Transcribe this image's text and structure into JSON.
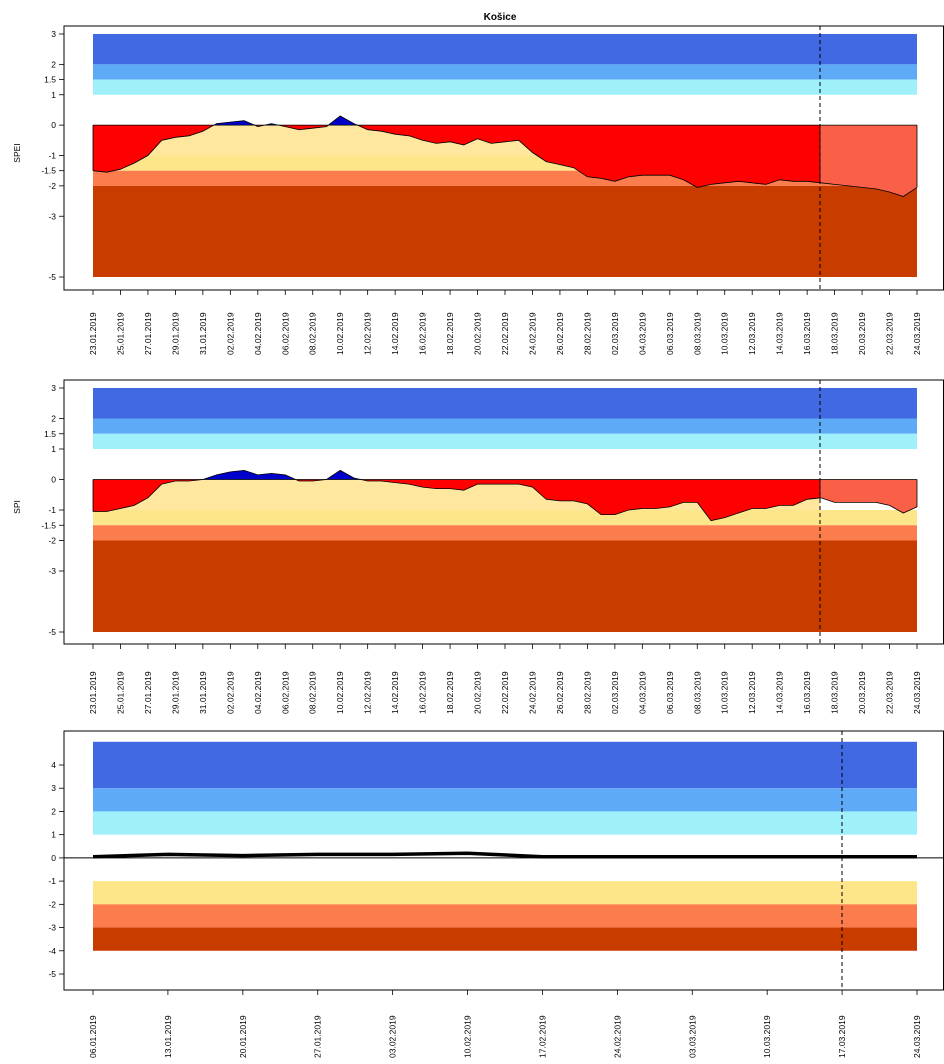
{
  "title": "Košice",
  "colors": {
    "wet_extreme": "#4169e1",
    "wet_severe": "#5eaaf7",
    "wet_moderate": "#a0f0fa",
    "dry_moderate": "#fde68a",
    "dry_severe": "#fb7c4c",
    "dry_extreme": "#c93c00",
    "deficit_observed": "#ff0000",
    "deficit_forecast": "#fa6048",
    "surplus": "#0000cd",
    "deficit_fill": "#ffe7a0"
  },
  "chart_data": [
    {
      "type": "area",
      "ylabel": "SPEI",
      "yticks": [
        3,
        2,
        1.5,
        1,
        0,
        -1,
        -1.5,
        -2,
        -3,
        -5
      ],
      "ylim": [
        -5,
        3
      ],
      "forecast_start": "17.03.2019",
      "x_tick_labels": [
        "23.01.2019",
        "25.01.2019",
        "27.01.2019",
        "29.01.2019",
        "31.01.2019",
        "02.02.2019",
        "04.02.2019",
        "06.02.2019",
        "08.02.2019",
        "10.02.2019",
        "12.02.2019",
        "14.02.2019",
        "16.02.2019",
        "18.02.2019",
        "20.02.2019",
        "22.02.2019",
        "24.02.2019",
        "26.02.2019",
        "28.02.2019",
        "02.03.2019",
        "04.03.2019",
        "06.03.2019",
        "08.03.2019",
        "10.03.2019",
        "12.03.2019",
        "14.03.2019",
        "16.03.2019",
        "18.03.2019",
        "20.03.2019",
        "22.03.2019",
        "24.03.2019"
      ],
      "bands": [
        {
          "from": 2,
          "to": 3,
          "color": "#4169e1"
        },
        {
          "from": 1.5,
          "to": 2,
          "color": "#5eaaf7"
        },
        {
          "from": 1,
          "to": 1.5,
          "color": "#a0f0fa"
        },
        {
          "from": -1.5,
          "to": -1,
          "color": "#fde68a"
        },
        {
          "from": -2,
          "to": -1.5,
          "color": "#fb7c4c"
        },
        {
          "from": -5,
          "to": -2,
          "color": "#c93c00"
        }
      ],
      "x": [
        0,
        1,
        2,
        3,
        4,
        5,
        6,
        7,
        8,
        9,
        10,
        11,
        12,
        13,
        14,
        15,
        16,
        17,
        18,
        19,
        20,
        21,
        22,
        23,
        24,
        25,
        26,
        27,
        28,
        29,
        30,
        31,
        32,
        33,
        34,
        35,
        36,
        37,
        38,
        39,
        40,
        41,
        42,
        43,
        44,
        45,
        46,
        47,
        48,
        49,
        50,
        51,
        52,
        53,
        54,
        55,
        56,
        57,
        58,
        59,
        60
      ],
      "values": [
        -1.5,
        -1.55,
        -1.45,
        -1.25,
        -1.0,
        -0.5,
        -0.4,
        -0.35,
        -0.2,
        0.05,
        0.1,
        0.15,
        -0.05,
        0.05,
        -0.05,
        -0.15,
        -0.1,
        -0.05,
        0.3,
        0.05,
        -0.15,
        -0.2,
        -0.3,
        -0.35,
        -0.5,
        -0.6,
        -0.55,
        -0.65,
        -0.45,
        -0.6,
        -0.55,
        -0.5,
        -0.9,
        -1.2,
        -1.3,
        -1.4,
        -1.7,
        -1.75,
        -1.85,
        -1.7,
        -1.65,
        -1.65,
        -1.65,
        -1.8,
        -2.05,
        -1.95,
        -1.9,
        -1.85,
        -1.9,
        -1.95,
        -1.8,
        -1.85,
        -1.85,
        -1.9,
        -1.95,
        -2.0,
        -2.05,
        -2.1,
        -2.2,
        -2.35,
        -2.05
      ]
    },
    {
      "type": "area",
      "ylabel": "SPI",
      "yticks": [
        3,
        2,
        1.5,
        1,
        0,
        -1,
        -1.5,
        -2,
        -3,
        -5
      ],
      "ylim": [
        -5,
        3
      ],
      "forecast_start": "17.03.2019",
      "x_tick_labels": [
        "23.01.2019",
        "25.01.2019",
        "27.01.2019",
        "29.01.2019",
        "31.01.2019",
        "02.02.2019",
        "04.02.2019",
        "06.02.2019",
        "08.02.2019",
        "10.02.2019",
        "12.02.2019",
        "14.02.2019",
        "16.02.2019",
        "18.02.2019",
        "20.02.2019",
        "22.02.2019",
        "24.02.2019",
        "26.02.2019",
        "28.02.2019",
        "02.03.2019",
        "04.03.2019",
        "06.03.2019",
        "08.03.2019",
        "10.03.2019",
        "12.03.2019",
        "14.03.2019",
        "16.03.2019",
        "18.03.2019",
        "20.03.2019",
        "22.03.2019",
        "24.03.2019"
      ],
      "bands": [
        {
          "from": 2,
          "to": 3,
          "color": "#4169e1"
        },
        {
          "from": 1.5,
          "to": 2,
          "color": "#5eaaf7"
        },
        {
          "from": 1,
          "to": 1.5,
          "color": "#a0f0fa"
        },
        {
          "from": -1.5,
          "to": -1,
          "color": "#fde68a"
        },
        {
          "from": -2,
          "to": -1.5,
          "color": "#fb7c4c"
        },
        {
          "from": -5,
          "to": -2,
          "color": "#c93c00"
        }
      ],
      "x": [
        0,
        1,
        2,
        3,
        4,
        5,
        6,
        7,
        8,
        9,
        10,
        11,
        12,
        13,
        14,
        15,
        16,
        17,
        18,
        19,
        20,
        21,
        22,
        23,
        24,
        25,
        26,
        27,
        28,
        29,
        30,
        31,
        32,
        33,
        34,
        35,
        36,
        37,
        38,
        39,
        40,
        41,
        42,
        43,
        44,
        45,
        46,
        47,
        48,
        49,
        50,
        51,
        52,
        53,
        54,
        55,
        56,
        57,
        58,
        59,
        60
      ],
      "values": [
        -1.05,
        -1.05,
        -0.95,
        -0.85,
        -0.6,
        -0.15,
        -0.05,
        -0.05,
        0.0,
        0.15,
        0.25,
        0.3,
        0.15,
        0.2,
        0.15,
        -0.05,
        -0.05,
        0.0,
        0.3,
        0.05,
        -0.05,
        -0.05,
        -0.1,
        -0.15,
        -0.25,
        -0.3,
        -0.3,
        -0.35,
        -0.15,
        -0.15,
        -0.15,
        -0.15,
        -0.25,
        -0.65,
        -0.7,
        -0.7,
        -0.8,
        -1.15,
        -1.15,
        -1.0,
        -0.95,
        -0.95,
        -0.9,
        -0.75,
        -0.75,
        -1.35,
        -1.25,
        -1.1,
        -0.95,
        -0.95,
        -0.85,
        -0.85,
        -0.65,
        -0.6,
        -0.75,
        -0.75,
        -0.75,
        -0.75,
        -0.85,
        -1.1,
        -0.9
      ]
    },
    {
      "type": "area",
      "ylabel": "",
      "yticks": [
        4,
        3,
        2,
        1,
        0,
        -1,
        -2,
        -3,
        -4,
        -5
      ],
      "ylim": [
        -5.5,
        5.3
      ],
      "forecast_start": "17.03.2019",
      "x_tick_labels": [
        "06.01.2019",
        "13.01.2019",
        "20.01.2019",
        "27.01.2019",
        "03.02.2019",
        "10.02.2019",
        "17.02.2019",
        "24.02.2019",
        "03.03.2019",
        "10.03.2019",
        "17.03.2019",
        "24.03.2019"
      ],
      "bands": [
        {
          "from": 3,
          "to": 5,
          "color": "#4169e1"
        },
        {
          "from": 2,
          "to": 3,
          "color": "#5eaaf7"
        },
        {
          "from": 1,
          "to": 2,
          "color": "#a0f0fa"
        },
        {
          "from": -2,
          "to": -1,
          "color": "#fde68a"
        },
        {
          "from": -3,
          "to": -2,
          "color": "#fb7c4c"
        },
        {
          "from": -4,
          "to": -3,
          "color": "#c93c00"
        }
      ],
      "x": [
        0,
        7,
        14,
        21,
        28,
        35,
        42,
        49,
        56,
        63,
        70,
        77
      ],
      "values": [
        0.05,
        0.15,
        0.1,
        0.15,
        0.15,
        0.2,
        0.05,
        0.05,
        0.05,
        0.05,
        0.05,
        0.05
      ]
    }
  ]
}
